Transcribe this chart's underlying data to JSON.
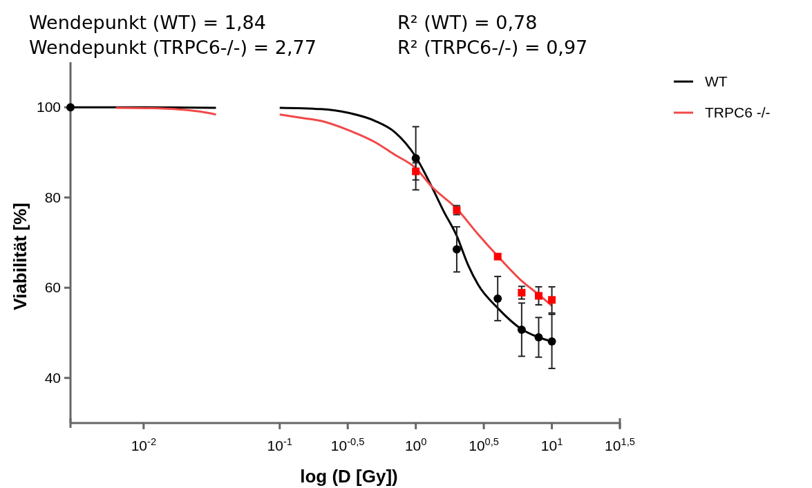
{
  "chart_data": {
    "type": "line",
    "xlabel": "log (D [Gy])",
    "ylabel": "Viabilität [%]",
    "log": "x",
    "xlim": [
      0.0029,
      31.62
    ],
    "xticks": [
      {
        "value": 0.01,
        "label": "10$^{-2}$"
      },
      {
        "value": 0.1,
        "label": "10$^{-1}$"
      },
      {
        "value": 0.3162,
        "label": "10$^{-0,5}$"
      },
      {
        "value": 1,
        "label": "10$^{0}$"
      },
      {
        "value": 3.162,
        "label": "10$^{0,5}$"
      },
      {
        "value": 10,
        "label": "10$^{1}$"
      },
      {
        "value": 31.62,
        "label": "10$^{1,5}$"
      }
    ],
    "ylim": [
      30,
      110
    ],
    "yticks": [
      40,
      60,
      80,
      100
    ],
    "legend": "top right",
    "annotations": [
      "Wendepunkt (WT) = 1,84",
      "R² (WT) = 0,78",
      "Wendepunkt (TRPC6-/-) = 2,77",
      "R² (TRPC6-/-) = 0,97"
    ],
    "series": [
      {
        "name": "WT",
        "color": "#000000",
        "x": [
          0.0029,
          0.01,
          0.034,
          0.06,
          0.1,
          0.2,
          0.316,
          0.5,
          0.7,
          1,
          1.31,
          1.6,
          2,
          2.41,
          2.88,
          4,
          6,
          8,
          10
        ],
        "values": [
          100,
          100,
          99.9,
          null,
          99.9,
          99.6,
          98.8,
          97,
          94.5,
          89,
          82.4,
          77,
          71.5,
          65.2,
          60.6,
          55.5,
          50.8,
          49,
          48.1
        ]
      },
      {
        "name": "TRPC6 -/-",
        "color": "#f04848",
        "x": [
          0.00625,
          0.0115,
          0.0188,
          0.0268,
          0.034,
          0.06,
          0.1,
          0.15,
          0.2,
          0.316,
          0.5,
          0.7,
          1,
          1.31,
          2,
          2.88,
          4,
          6,
          8,
          10
        ],
        "values": [
          99.9,
          99.8,
          99.5,
          99.0,
          98.4,
          null,
          98.4,
          97.6,
          97,
          95,
          92.3,
          89.5,
          86.5,
          82.4,
          77.5,
          71.8,
          67,
          61.5,
          58.5,
          56
        ]
      },
      {
        "type": "scatter",
        "color": "#000000",
        "marker": "circle",
        "x": [
          0.0029,
          1,
          2,
          4,
          6,
          8,
          10
        ],
        "values": [
          100,
          88.7,
          68.5,
          57.6,
          50.7,
          49.0,
          48.1
        ],
        "errors": [
          null,
          7,
          5,
          4.9,
          5.9,
          4.4,
          6
        ]
      },
      {
        "type": "scatter",
        "color": "#ff0000",
        "marker": "square",
        "x": [
          1,
          2,
          4,
          6,
          8,
          10
        ],
        "values": [
          85.8,
          77.2,
          66.9,
          58.9,
          58.2,
          57.3
        ],
        "errors": [
          1.9,
          1.0,
          null,
          1.4,
          2,
          2.9
        ]
      }
    ]
  }
}
